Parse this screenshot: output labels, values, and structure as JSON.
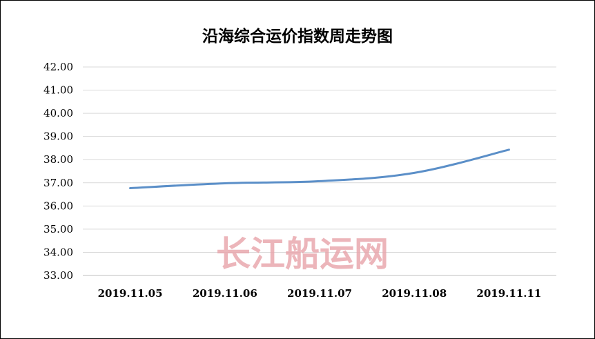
{
  "chart_data": {
    "type": "line",
    "title": "沿海综合运价指数周走势图",
    "categories": [
      "2019.11.05",
      "2019.11.06",
      "2019.11.07",
      "2019.11.08",
      "2019.11.11"
    ],
    "series": [
      {
        "values": [
          36.77,
          36.98,
          37.07,
          37.43,
          38.43
        ],
        "color": "#5b8fc8"
      }
    ],
    "ylim": [
      33.0,
      42.0
    ],
    "yticks": [
      "42.00",
      "41.00",
      "40.00",
      "39.00",
      "38.00",
      "37.00",
      "36.00",
      "35.00",
      "34.00",
      "33.00"
    ],
    "xlabel": "",
    "ylabel": "",
    "grid": true,
    "legend": "none"
  },
  "watermark": "长江船运网",
  "colors": {
    "line": "#5b8fc8",
    "grid": "#d9d9d9",
    "watermark": "#e8a3aa"
  }
}
